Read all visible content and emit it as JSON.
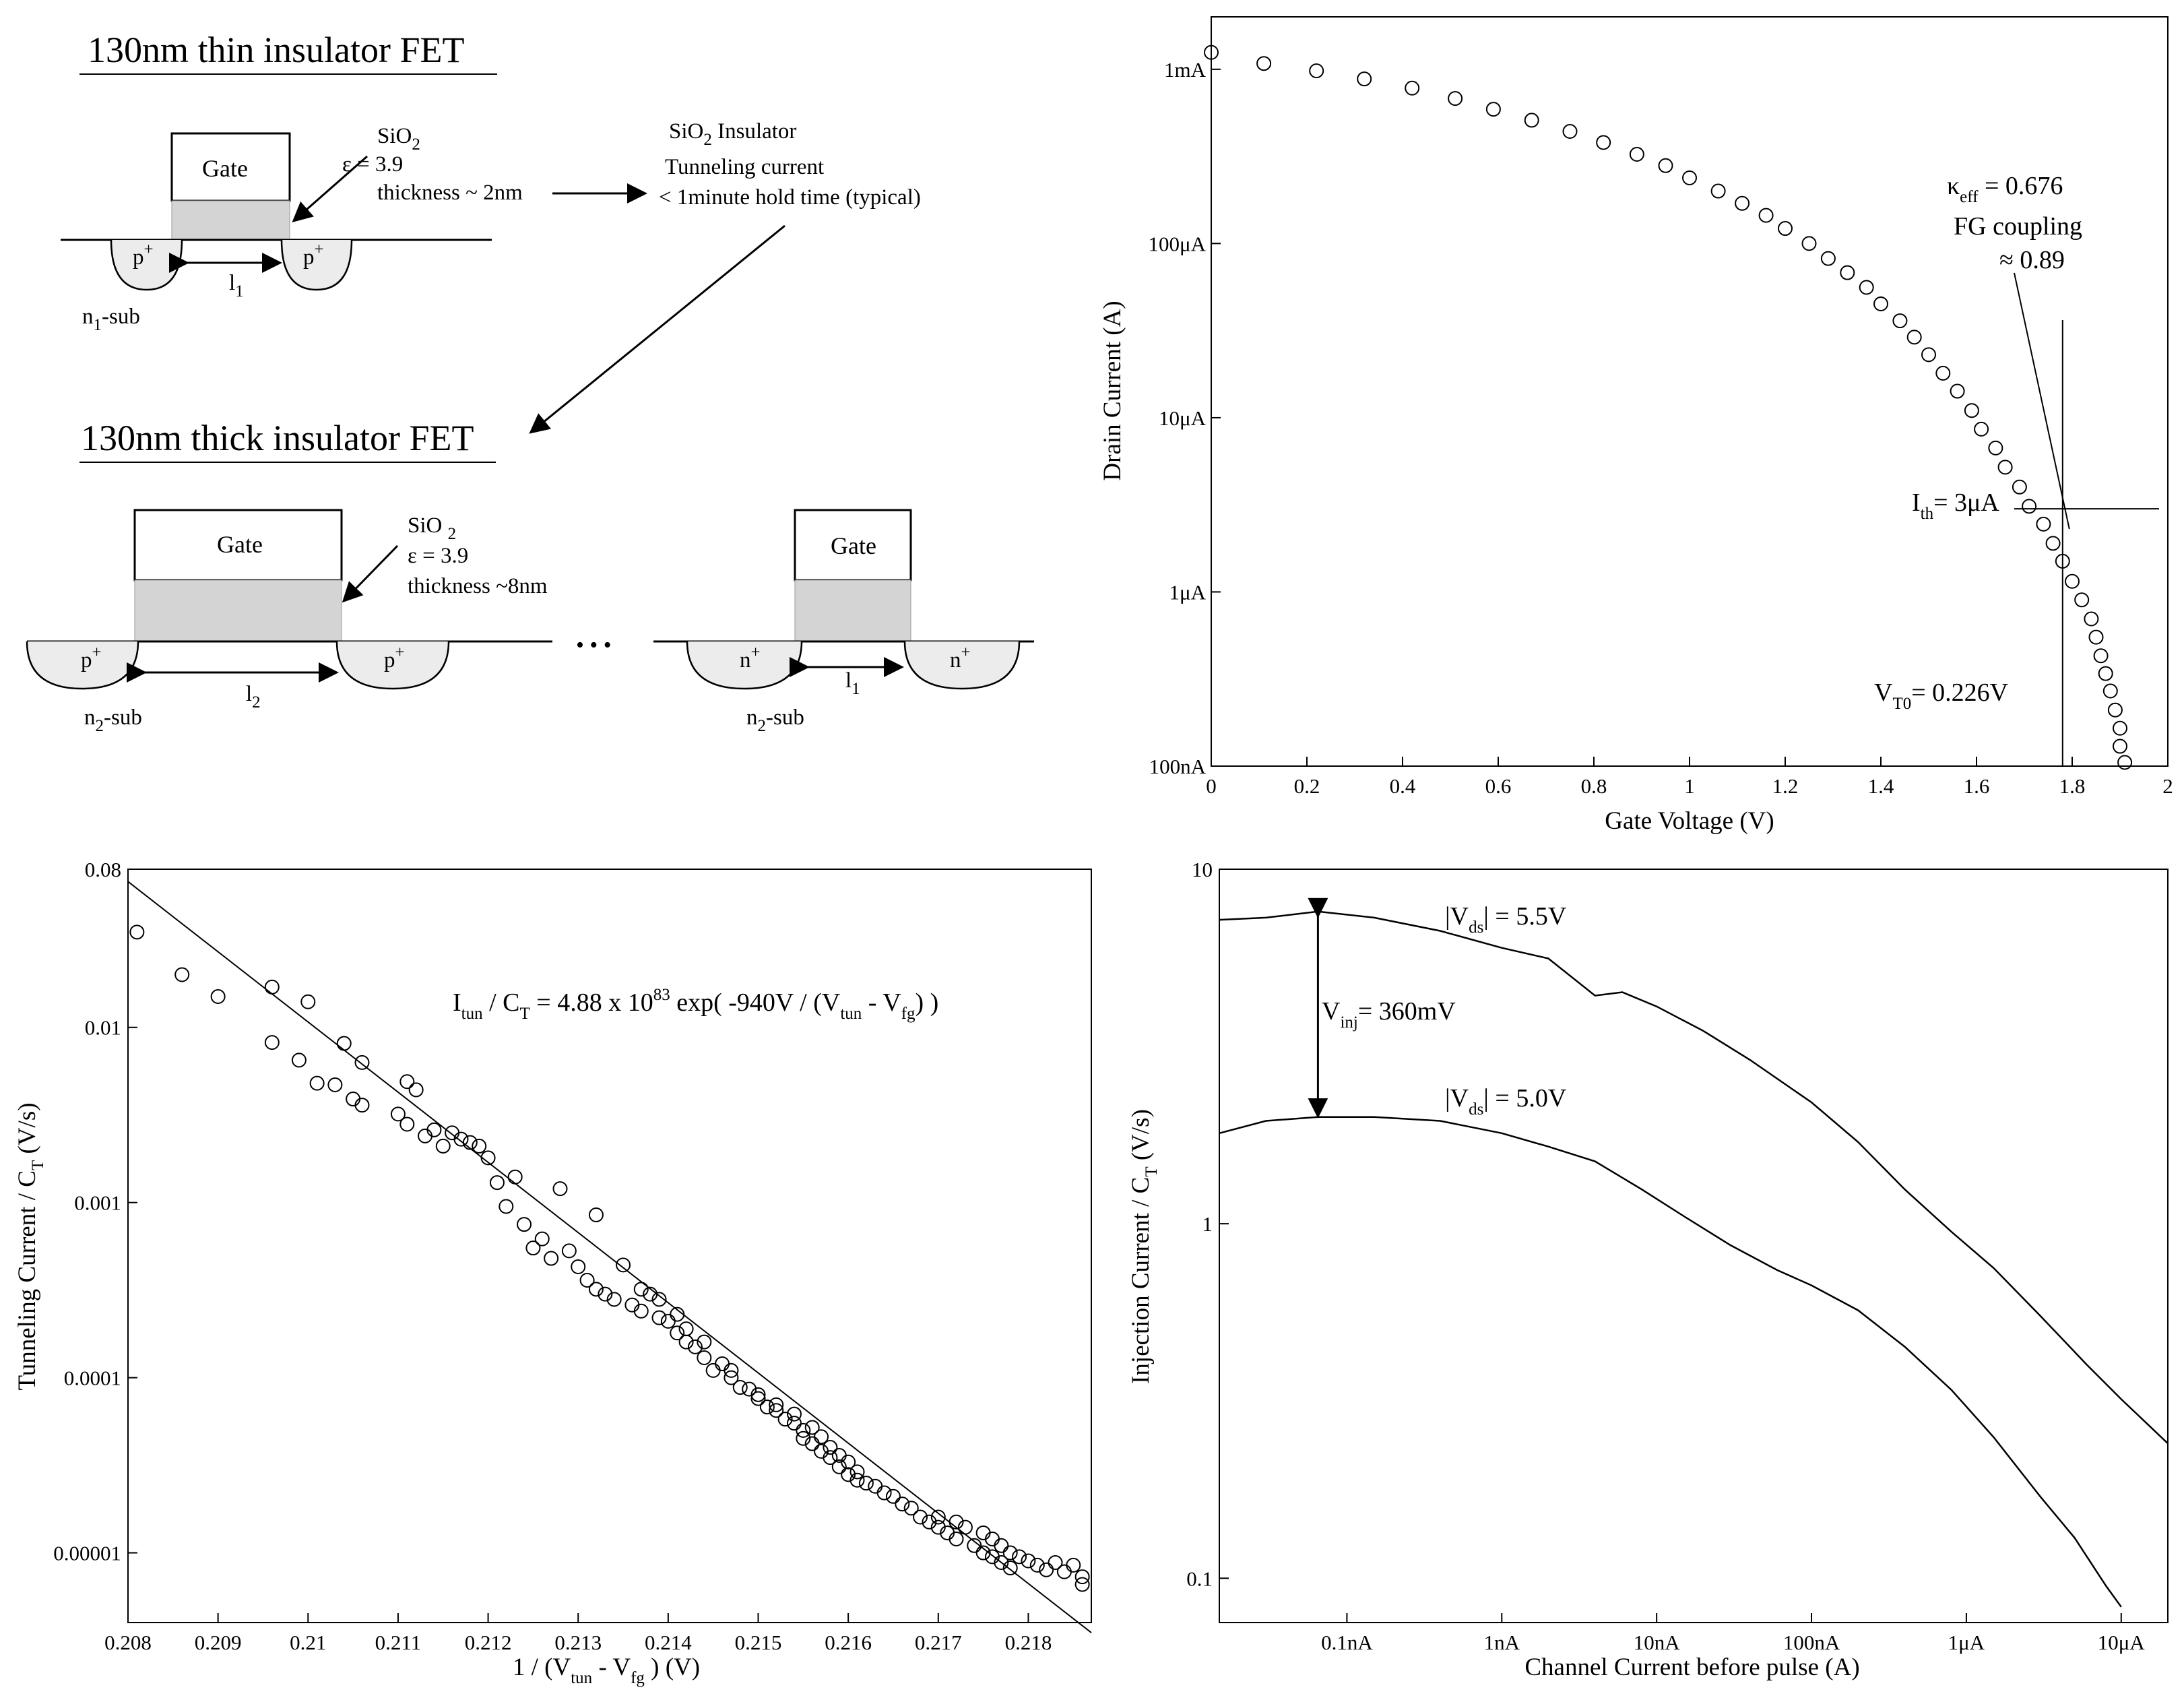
{
  "diagram": {
    "thin": {
      "title": "130nm thin insulator FET",
      "gate": "Gate",
      "sio2_main": "SiO",
      "sio2_sub": "2",
      "eps": "ε    = 3.9",
      "thickness": "thickness ~ 2nm",
      "p_left": "p",
      "p_right": "p",
      "plus": "+",
      "l_main": "l",
      "l_sub": "1",
      "sub_main": "n",
      "sub_sub": "1",
      "sub_rest": "-sub"
    },
    "insulator_note": {
      "line1_main": "SiO",
      "line1_sub": "2",
      "line1_rest": " Insulator",
      "line2": "Tunneling current",
      "line3": "< 1minute hold time (typical)"
    },
    "thick": {
      "title": "130nm thick insulator FET",
      "gate": "Gate",
      "sio2_main": "SiO ",
      "sio2_sub": "2",
      "eps": "ε = 3.9",
      "thickness": "thickness  ~8nm",
      "p_left": "p",
      "p_right": "p",
      "plus": "+",
      "l_main": "l",
      "l_sub": "2",
      "sub_main": "n",
      "sub_sub": "2",
      "sub_rest": "-sub",
      "ellipsis": "• • •"
    },
    "nfet": {
      "gate": "Gate",
      "n_left": "n",
      "n_right": "n",
      "plus": "+",
      "l_main": "l",
      "l_sub": "1",
      "sub_main": "n",
      "sub_sub": "2",
      "sub_rest": "-sub"
    }
  },
  "chart_data": [
    {
      "type": "scatter",
      "title": "",
      "xlabel": "Gate Voltage (V)",
      "ylabel": "Drain Current (A)",
      "xlim": [
        0,
        2
      ],
      "ylim": [
        1e-07,
        0.002
      ],
      "yscale": "log",
      "x_ticks": [
        "0",
        "0.2",
        "0.4",
        "0.6",
        "0.8",
        "1",
        "1.2",
        "1.4",
        "1.6",
        "1.8",
        "2"
      ],
      "y_ticks": [
        "100nA",
        "1μA",
        "10μA",
        "100μA",
        "1mA"
      ],
      "annotations": {
        "kappa_main": "κ",
        "kappa_sub": "eff",
        "kappa_rest": " = 0.676",
        "fg1": "FG coupling",
        "fg2": "≈ 0.89",
        "ith_main": "I",
        "ith_sub": "th",
        "ith_rest": "= 3μA",
        "vt_main": "V",
        "vt_sub": "T0",
        "vt_rest": "= 0.226V"
      },
      "threshold": {
        "vt": 1.78,
        "ith": 3e-06
      },
      "points": [
        [
          0.0,
          0.00125
        ],
        [
          0.11,
          0.00108
        ],
        [
          0.22,
          0.00098
        ],
        [
          0.32,
          0.00088
        ],
        [
          0.42,
          0.00078
        ],
        [
          0.51,
          0.00068
        ],
        [
          0.59,
          0.00059
        ],
        [
          0.67,
          0.00051
        ],
        [
          0.75,
          0.00044
        ],
        [
          0.82,
          0.00038
        ],
        [
          0.89,
          0.000325
        ],
        [
          0.95,
          0.00028
        ],
        [
          1.0,
          0.000238
        ],
        [
          1.06,
          0.0002
        ],
        [
          1.11,
          0.00017
        ],
        [
          1.16,
          0.000145
        ],
        [
          1.2,
          0.000122
        ],
        [
          1.25,
          0.0001
        ],
        [
          1.29,
          8.2e-05
        ],
        [
          1.33,
          6.8e-05
        ],
        [
          1.37,
          5.6e-05
        ],
        [
          1.4,
          4.5e-05
        ],
        [
          1.44,
          3.6e-05
        ],
        [
          1.47,
          2.9e-05
        ],
        [
          1.5,
          2.3e-05
        ],
        [
          1.53,
          1.8e-05
        ],
        [
          1.56,
          1.42e-05
        ],
        [
          1.59,
          1.1e-05
        ],
        [
          1.61,
          8.6e-06
        ],
        [
          1.64,
          6.7e-06
        ],
        [
          1.66,
          5.2e-06
        ],
        [
          1.69,
          4e-06
        ],
        [
          1.71,
          3.1e-06
        ],
        [
          1.74,
          2.45e-06
        ],
        [
          1.76,
          1.9e-06
        ],
        [
          1.78,
          1.5e-06
        ],
        [
          1.8,
          1.15e-06
        ],
        [
          1.82,
          9e-07
        ],
        [
          1.84,
          7e-07
        ],
        [
          1.85,
          5.5e-07
        ],
        [
          1.86,
          4.3e-07
        ],
        [
          1.87,
          3.4e-07
        ],
        [
          1.88,
          2.7e-07
        ],
        [
          1.89,
          2.1e-07
        ],
        [
          1.9,
          1.65e-07
        ],
        [
          1.9,
          1.3e-07
        ],
        [
          1.91,
          1.05e-07
        ]
      ]
    },
    {
      "type": "scatter",
      "title": "",
      "xlabel_main": "1 / (V",
      "xlabel_sub1": "tun",
      "xlabel_mid": " - V",
      "xlabel_sub2": "fg",
      "xlabel_end": " ) (V)",
      "ylabel_main": "Tunneling Current / C",
      "ylabel_sub": "T",
      "ylabel_end": " (V/s)",
      "xlim": [
        0.208,
        0.2187
      ],
      "ylim": [
        4e-06,
        0.08
      ],
      "yscale": "log",
      "x_ticks": [
        "0.208",
        "0.209",
        "0.21",
        "0.211",
        "0.212",
        "0.213",
        "0.214",
        "0.215",
        "0.216",
        "0.217",
        "0.218"
      ],
      "y_ticks": [
        "0.08",
        "0.01",
        "0.001",
        "0.0001",
        "0.00001"
      ],
      "equation": {
        "a": "I",
        "a_sub": "tun",
        "b": " / C",
        "b_sub": "T",
        "c": " = 4.88 x 10",
        "c_sup": "83",
        "d": " exp( -940V / (V",
        "d_sub": "tun",
        "e": " - V",
        "e_sub": "fg",
        "f": ") )"
      },
      "fit": {
        "x": [
          0.208,
          0.2187
        ],
        "y": [
          0.068,
          3.5e-06
        ]
      },
      "points": [
        [
          0.2081,
          0.035
        ],
        [
          0.2086,
          0.02
        ],
        [
          0.209,
          0.015
        ],
        [
          0.2096,
          0.017
        ],
        [
          0.21,
          0.014
        ],
        [
          0.2096,
          0.0082
        ],
        [
          0.2099,
          0.0065
        ],
        [
          0.2101,
          0.0048
        ],
        [
          0.2103,
          0.0047
        ],
        [
          0.2104,
          0.0081
        ],
        [
          0.2105,
          0.0039
        ],
        [
          0.2106,
          0.0063
        ],
        [
          0.2106,
          0.0036
        ],
        [
          0.211,
          0.0032
        ],
        [
          0.2111,
          0.0049
        ],
        [
          0.2112,
          0.0044
        ],
        [
          0.2111,
          0.0028
        ],
        [
          0.2113,
          0.0024
        ],
        [
          0.2114,
          0.0026
        ],
        [
          0.2115,
          0.0021
        ],
        [
          0.2116,
          0.0025
        ],
        [
          0.2117,
          0.0023
        ],
        [
          0.2118,
          0.0022
        ],
        [
          0.2119,
          0.0021
        ],
        [
          0.212,
          0.0018
        ],
        [
          0.2121,
          0.0013
        ],
        [
          0.2122,
          0.00095
        ],
        [
          0.2123,
          0.0014
        ],
        [
          0.2124,
          0.00075
        ],
        [
          0.2125,
          0.00055
        ],
        [
          0.2126,
          0.00062
        ],
        [
          0.2127,
          0.00048
        ],
        [
          0.2128,
          0.0012
        ],
        [
          0.2129,
          0.00053
        ],
        [
          0.213,
          0.00043
        ],
        [
          0.2131,
          0.00036
        ],
        [
          0.2132,
          0.00085
        ],
        [
          0.2132,
          0.00032
        ],
        [
          0.2133,
          0.0003
        ],
        [
          0.2134,
          0.00028
        ],
        [
          0.2135,
          0.00044
        ],
        [
          0.2136,
          0.00026
        ],
        [
          0.2137,
          0.00032
        ],
        [
          0.2137,
          0.00024
        ],
        [
          0.2138,
          0.0003
        ],
        [
          0.2139,
          0.00022
        ],
        [
          0.2139,
          0.00028
        ],
        [
          0.214,
          0.00021
        ],
        [
          0.2141,
          0.00023
        ],
        [
          0.2141,
          0.00018
        ],
        [
          0.2142,
          0.00019
        ],
        [
          0.2142,
          0.00016
        ],
        [
          0.2143,
          0.00015
        ],
        [
          0.2144,
          0.00013
        ],
        [
          0.2144,
          0.00016
        ],
        [
          0.2145,
          0.00011
        ],
        [
          0.2146,
          0.00012
        ],
        [
          0.2147,
          0.0001
        ],
        [
          0.2147,
          0.00011
        ],
        [
          0.2148,
          8.8e-05
        ],
        [
          0.2149,
          8.6e-05
        ],
        [
          0.215,
          7.6e-05
        ],
        [
          0.215,
          8e-05
        ],
        [
          0.2151,
          6.8e-05
        ],
        [
          0.2152,
          6.5e-05
        ],
        [
          0.2152,
          7e-05
        ],
        [
          0.2153,
          5.8e-05
        ],
        [
          0.2154,
          5.5e-05
        ],
        [
          0.2154,
          6.2e-05
        ],
        [
          0.2155,
          5e-05
        ],
        [
          0.2155,
          4.5e-05
        ],
        [
          0.2156,
          5.2e-05
        ],
        [
          0.2156,
          4.2e-05
        ],
        [
          0.2157,
          4.6e-05
        ],
        [
          0.2157,
          3.8e-05
        ],
        [
          0.2158,
          4e-05
        ],
        [
          0.2158,
          3.5e-05
        ],
        [
          0.2159,
          3.6e-05
        ],
        [
          0.2159,
          3.1e-05
        ],
        [
          0.216,
          3.3e-05
        ],
        [
          0.216,
          2.8e-05
        ],
        [
          0.2161,
          2.9e-05
        ],
        [
          0.2161,
          2.6e-05
        ],
        [
          0.2162,
          2.5e-05
        ],
        [
          0.2163,
          2.4e-05
        ],
        [
          0.2164,
          2.2e-05
        ],
        [
          0.2165,
          2.1e-05
        ],
        [
          0.2166,
          1.9e-05
        ],
        [
          0.2167,
          1.8e-05
        ],
        [
          0.2168,
          1.6e-05
        ],
        [
          0.2169,
          1.5e-05
        ],
        [
          0.217,
          1.4e-05
        ],
        [
          0.217,
          1.6e-05
        ],
        [
          0.2171,
          1.3e-05
        ],
        [
          0.2172,
          1.5e-05
        ],
        [
          0.2172,
          1.2e-05
        ],
        [
          0.2173,
          1.4e-05
        ],
        [
          0.2174,
          1.1e-05
        ],
        [
          0.2175,
          1.3e-05
        ],
        [
          0.2175,
          1e-05
        ],
        [
          0.2176,
          1.2e-05
        ],
        [
          0.2176,
          9.5e-06
        ],
        [
          0.2177,
          1.1e-05
        ],
        [
          0.2177,
          8.8e-06
        ],
        [
          0.2178,
          8.2e-06
        ],
        [
          0.2178,
          1e-05
        ],
        [
          0.2179,
          9.5e-06
        ],
        [
          0.218,
          9e-06
        ],
        [
          0.2181,
          8.5e-06
        ],
        [
          0.2182,
          8e-06
        ],
        [
          0.2183,
          8.8e-06
        ],
        [
          0.2184,
          7.8e-06
        ],
        [
          0.2185,
          8.5e-06
        ],
        [
          0.2186,
          7.3e-06
        ],
        [
          0.2186,
          6.6e-06
        ]
      ]
    },
    {
      "type": "line",
      "title": "",
      "xlabel": "Channel Current before pulse (A)",
      "ylabel_main": "Injection Current / C",
      "ylabel_sub": "T",
      "ylabel_end": " (V/s)",
      "xlim": [
        1.5e-11,
        2e-05
      ],
      "ylim": [
        0.075,
        10
      ],
      "xscale": "log",
      "yscale": "log",
      "x_ticks": [
        "0.1nA",
        "1nA",
        "10nA",
        "100nA",
        "1μA",
        "10μA"
      ],
      "y_ticks": [
        "10",
        "1",
        "0.1"
      ],
      "annotations": {
        "a_main": "|V",
        "a_sub": "ds",
        "a_rest": "| = 5.5V",
        "b_main": "|V",
        "b_sub": "ds",
        "b_rest": "| = 5.0V",
        "v_main": "V",
        "v_sub": "inj",
        "v_rest": "= 360mV"
      },
      "arrow": {
        "x": 6.5e-11,
        "y1": 7.6,
        "y2": 2.0
      },
      "series": [
        {
          "name": "|Vds| = 5.5V",
          "x": [
            1.5e-11,
            3e-11,
            6.5e-11,
            1.5e-10,
            4e-10,
            1e-09,
            2e-09,
            4e-09,
            6e-09,
            1e-08,
            2e-08,
            4e-08,
            1e-07,
            2e-07,
            4e-07,
            8e-07,
            1.5e-06,
            3e-06,
            6e-06,
            1e-05,
            2e-05
          ],
          "y": [
            7.2,
            7.3,
            7.6,
            7.3,
            6.7,
            6.0,
            5.6,
            4.4,
            4.5,
            4.1,
            3.5,
            2.9,
            2.2,
            1.7,
            1.25,
            0.95,
            0.75,
            0.55,
            0.4,
            0.32,
            0.24
          ]
        },
        {
          "name": "|Vds| = 5.0V",
          "x": [
            1.5e-11,
            3e-11,
            6.5e-11,
            1.5e-10,
            4e-10,
            1e-09,
            2e-09,
            4e-09,
            8e-09,
            1.5e-08,
            3e-08,
            6e-08,
            1e-07,
            2e-07,
            4e-07,
            8e-07,
            1.5e-06,
            3e-06,
            5e-06,
            8e-06,
            1e-05
          ],
          "y": [
            1.8,
            1.95,
            2.0,
            2.0,
            1.95,
            1.8,
            1.65,
            1.5,
            1.25,
            1.05,
            0.87,
            0.74,
            0.67,
            0.57,
            0.45,
            0.34,
            0.25,
            0.17,
            0.13,
            0.095,
            0.083
          ]
        }
      ]
    }
  ]
}
